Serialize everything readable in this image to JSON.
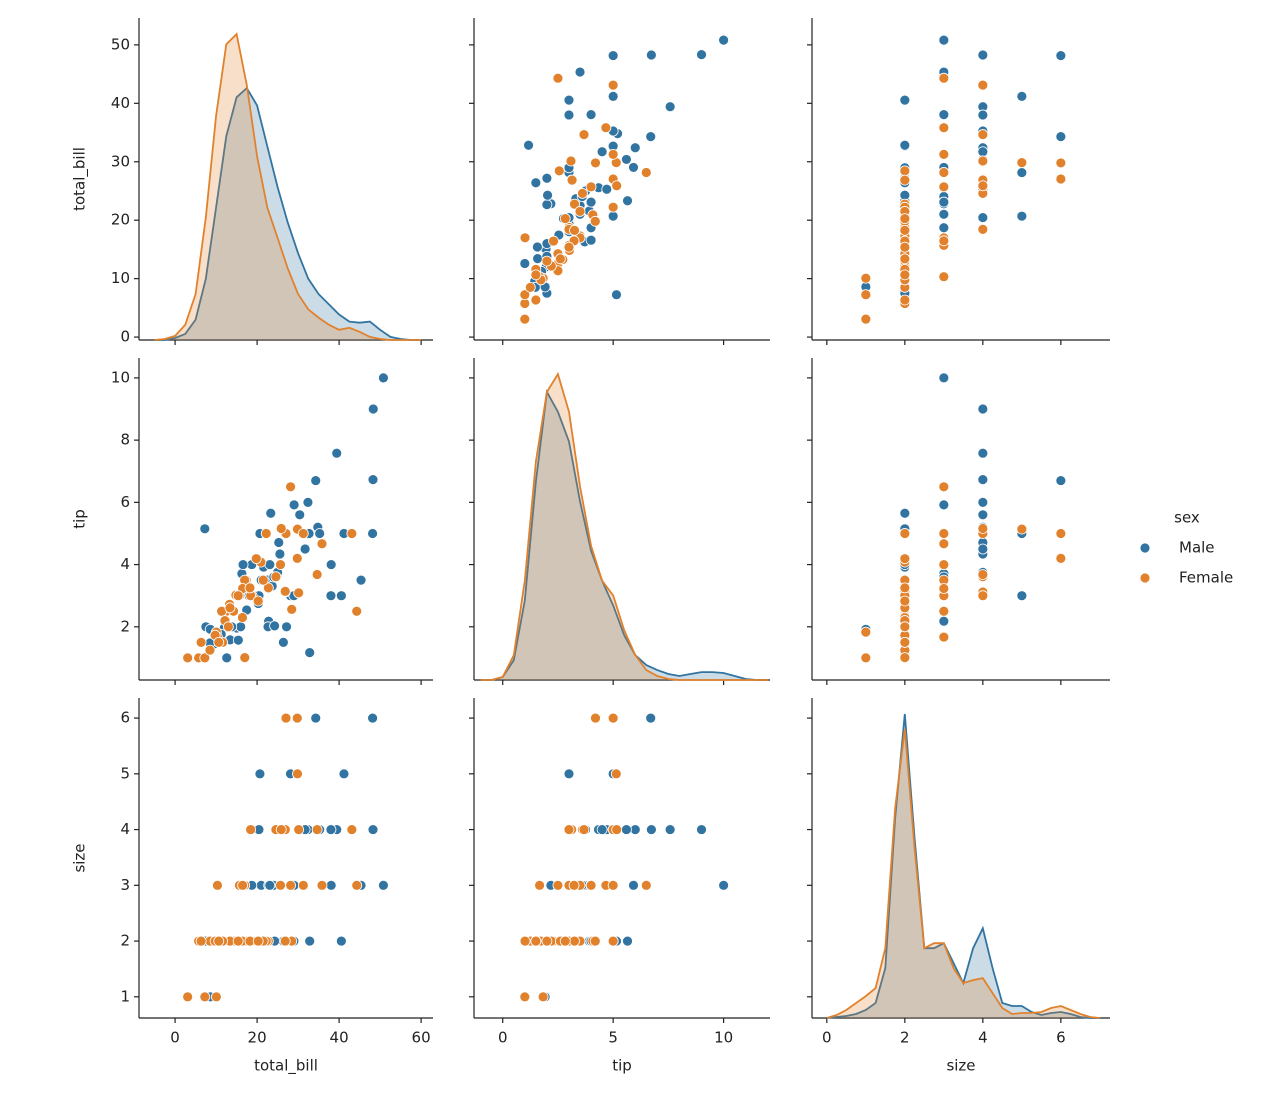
{
  "chart_data": {
    "type": "pairplot",
    "variables": [
      "total_bill",
      "tip",
      "size"
    ],
    "axes": [
      {
        "xlim": [
          -8.8,
          62.9
        ],
        "ylim": [
          -0.5,
          54.6
        ],
        "xticks": [
          0,
          20,
          40,
          60
        ],
        "yticks": [
          0,
          10,
          20,
          30,
          40,
          50
        ],
        "kde_x": [
          -5,
          -2.5,
          0,
          2.5,
          5,
          7.5,
          10,
          12.5,
          15,
          17.5,
          20,
          22.5,
          25,
          27.5,
          30,
          32.5,
          35,
          37.5,
          40,
          42.5,
          45,
          47.5,
          50,
          52.5,
          55,
          57.5,
          60
        ]
      },
      {
        "xlim": [
          -1.3,
          12.1
        ],
        "ylim": [
          0.29,
          10.64
        ],
        "xticks": [
          0,
          5,
          10
        ],
        "yticks": [
          2,
          4,
          6,
          8,
          10
        ],
        "kde_x": [
          -1,
          -0.5,
          0,
          0.5,
          1,
          1.5,
          2,
          2.5,
          3,
          3.5,
          4,
          4.5,
          5,
          5.5,
          6,
          6.5,
          7,
          7.5,
          8,
          8.5,
          9,
          9.5,
          10,
          10.5,
          11,
          11.5,
          12
        ]
      },
      {
        "xlim": [
          -0.38,
          7.26
        ],
        "ylim": [
          0.62,
          6.36
        ],
        "xticks": [
          0,
          2,
          4,
          6
        ],
        "yticks": [
          1,
          2,
          3,
          4,
          5,
          6
        ],
        "kde_x": [
          0,
          0.25,
          0.5,
          0.75,
          1,
          1.25,
          1.5,
          1.75,
          2,
          2.25,
          2.5,
          2.75,
          3,
          3.25,
          3.5,
          3.75,
          4,
          4.25,
          4.5,
          4.75,
          5,
          5.25,
          5.5,
          5.75,
          6,
          6.25,
          6.5,
          6.75,
          7
        ]
      }
    ],
    "legend_title": "sex",
    "legend": "right",
    "series": [
      {
        "name": "Male",
        "color": "#3274a1",
        "total_bill": [
          50.81,
          48.33,
          48.27,
          48.17,
          7.25,
          40.55,
          41.19,
          45.35,
          39.42,
          34.81,
          32.4,
          34.3,
          20.69,
          28.15,
          22.49,
          16.29,
          21.01,
          17.46,
          7.51,
          9.55,
          12.02,
          13.42,
          15.04,
          19.44,
          25.0,
          25.56,
          23.68,
          30.4,
          25.29,
          18.04,
          20.29,
          32.68,
          38.07,
          23.33,
          26.41,
          31.71,
          20.45,
          16,
          14.07,
          22.82,
          29.03,
          27.18,
          38.01,
          35.26,
          10.27,
          15.42,
          18.71,
          21.58,
          13.81,
          11.24,
          24.06,
          32.83,
          12.6,
          8.52,
          16.58,
          28.97,
          8.58,
          22.67,
          24.27,
          23.1
        ],
        "tip": [
          10,
          9,
          6.73,
          5,
          5.15,
          3,
          5,
          3.5,
          7.58,
          5.2,
          6,
          6.7,
          5,
          3,
          3.5,
          3.71,
          3.5,
          2.54,
          2,
          1.45,
          1.97,
          1.58,
          1.96,
          3,
          3.75,
          4.34,
          3.31,
          5.6,
          4.71,
          3,
          2.75,
          5,
          4,
          5.65,
          1.5,
          4.5,
          3,
          2,
          2.5,
          2.18,
          5.92,
          2,
          3,
          5,
          1.71,
          1.57,
          4,
          3.92,
          2,
          1.76,
          3.6,
          1.17,
          1,
          1.48,
          4,
          3,
          1.92,
          2,
          2.03,
          4
        ],
        "size": [
          3,
          4,
          4,
          6,
          2,
          2,
          5,
          3,
          4,
          4,
          4,
          6,
          5,
          5,
          2,
          3,
          3,
          2,
          2,
          2,
          2,
          2,
          2,
          2,
          4,
          4,
          2,
          4,
          4,
          2,
          2,
          2,
          3,
          2,
          2,
          4,
          4,
          2,
          2,
          3,
          3,
          2,
          4,
          4,
          2,
          2,
          3,
          2,
          2,
          2,
          3,
          2,
          2,
          2,
          2,
          2,
          1,
          2,
          2,
          3
        ],
        "kde": [
          [
            0,
            0,
            0.0004,
            0.0012,
            0.004,
            0.012,
            0.026,
            0.04,
            0.0476,
            0.0494,
            0.046,
            0.038,
            0.03,
            0.023,
            0.017,
            0.012,
            0.009,
            0.007,
            0.005,
            0.0036,
            0.0034,
            0.0036,
            0.002,
            0.0006,
            0.0002,
            0,
            0
          ],
          [
            0,
            0,
            0.003,
            0.02,
            0.08,
            0.2,
            0.29,
            0.27,
            0.24,
            0.18,
            0.13,
            0.1,
            0.075,
            0.045,
            0.025,
            0.015,
            0.01,
            0.006,
            0.004,
            0.006,
            0.008,
            0.008,
            0.007,
            0.004,
            0.001,
            0,
            0
          ],
          [
            0,
            0.002,
            0.004,
            0.008,
            0.016,
            0.03,
            0.1,
            0.4,
            0.61,
            0.36,
            0.14,
            0.14,
            0.15,
            0.11,
            0.07,
            0.14,
            0.18,
            0.1,
            0.03,
            0.024,
            0.024,
            0.012,
            0.006,
            0.01,
            0.012,
            0.008,
            0.002,
            0,
            0
          ]
        ]
      },
      {
        "name": "Female",
        "color": "#e1812c",
        "total_bill": [
          44.3,
          43.11,
          3.07,
          5.75,
          7.25,
          10.07,
          8.51,
          10.33,
          14.83,
          16.99,
          18.78,
          24.59,
          35.83,
          29.85,
          30.14,
          27.05,
          29.8,
          26.88,
          17.31,
          20.92,
          12.54,
          15.69,
          22.75,
          11.35,
          13.28,
          14.26,
          19.81,
          28.44,
          25.71,
          9.78,
          16.43,
          12.16,
          16.97,
          22.23,
          28.17,
          13,
          18.43,
          31.27,
          16.47,
          26.86,
          25.89,
          13.39,
          6.35,
          11.59,
          34.65,
          10.65,
          15.38,
          21.5,
          18.26,
          20.27
        ],
        "tip": [
          2.5,
          5,
          1,
          1,
          1,
          1.83,
          1.25,
          1.67,
          3.02,
          1.01,
          3,
          3.61,
          4.67,
          5.14,
          3.09,
          5,
          4.2,
          3.12,
          3.5,
          4.08,
          2.5,
          3,
          3.25,
          2.5,
          2.72,
          2.5,
          4.19,
          2.56,
          4,
          1.73,
          2.3,
          2.2,
          3.5,
          5,
          6.5,
          2,
          3,
          5,
          3.23,
          3.14,
          5.16,
          2.61,
          1.5,
          1.5,
          3.68,
          1.5,
          3,
          3.5,
          3.25,
          2.83
        ],
        "size": [
          3,
          4,
          1,
          2,
          1,
          1,
          2,
          3,
          2,
          2,
          2,
          4,
          3,
          5,
          4,
          6,
          6,
          4,
          2,
          2,
          2,
          3,
          2,
          2,
          2,
          2,
          2,
          2,
          3,
          2,
          2,
          2,
          3,
          2,
          3,
          2,
          4,
          3,
          3,
          2,
          4,
          2,
          2,
          2,
          4,
          2,
          2,
          2,
          2,
          2
        ],
        "kde": [
          [
            0,
            0.0002,
            0.0008,
            0.003,
            0.009,
            0.024,
            0.044,
            0.058,
            0.06,
            0.05,
            0.036,
            0.026,
            0.02,
            0.014,
            0.009,
            0.006,
            0.0044,
            0.003,
            0.002,
            0.0024,
            0.0016,
            0.0006,
            0.0002,
            0,
            0,
            0,
            0
          ],
          [
            0,
            0,
            0.003,
            0.025,
            0.1,
            0.22,
            0.29,
            0.308,
            0.27,
            0.195,
            0.135,
            0.1,
            0.085,
            0.05,
            0.025,
            0.01,
            0.004,
            0.001,
            0,
            0,
            0,
            0,
            0,
            0,
            0,
            0,
            0
          ],
          [
            0,
            0.006,
            0.016,
            0.03,
            0.044,
            0.06,
            0.14,
            0.42,
            0.58,
            0.34,
            0.14,
            0.15,
            0.15,
            0.1,
            0.07,
            0.076,
            0.08,
            0.05,
            0.02,
            0.008,
            0.01,
            0.01,
            0.012,
            0.02,
            0.024,
            0.016,
            0.008,
            0.002,
            0
          ]
        ]
      }
    ]
  }
}
